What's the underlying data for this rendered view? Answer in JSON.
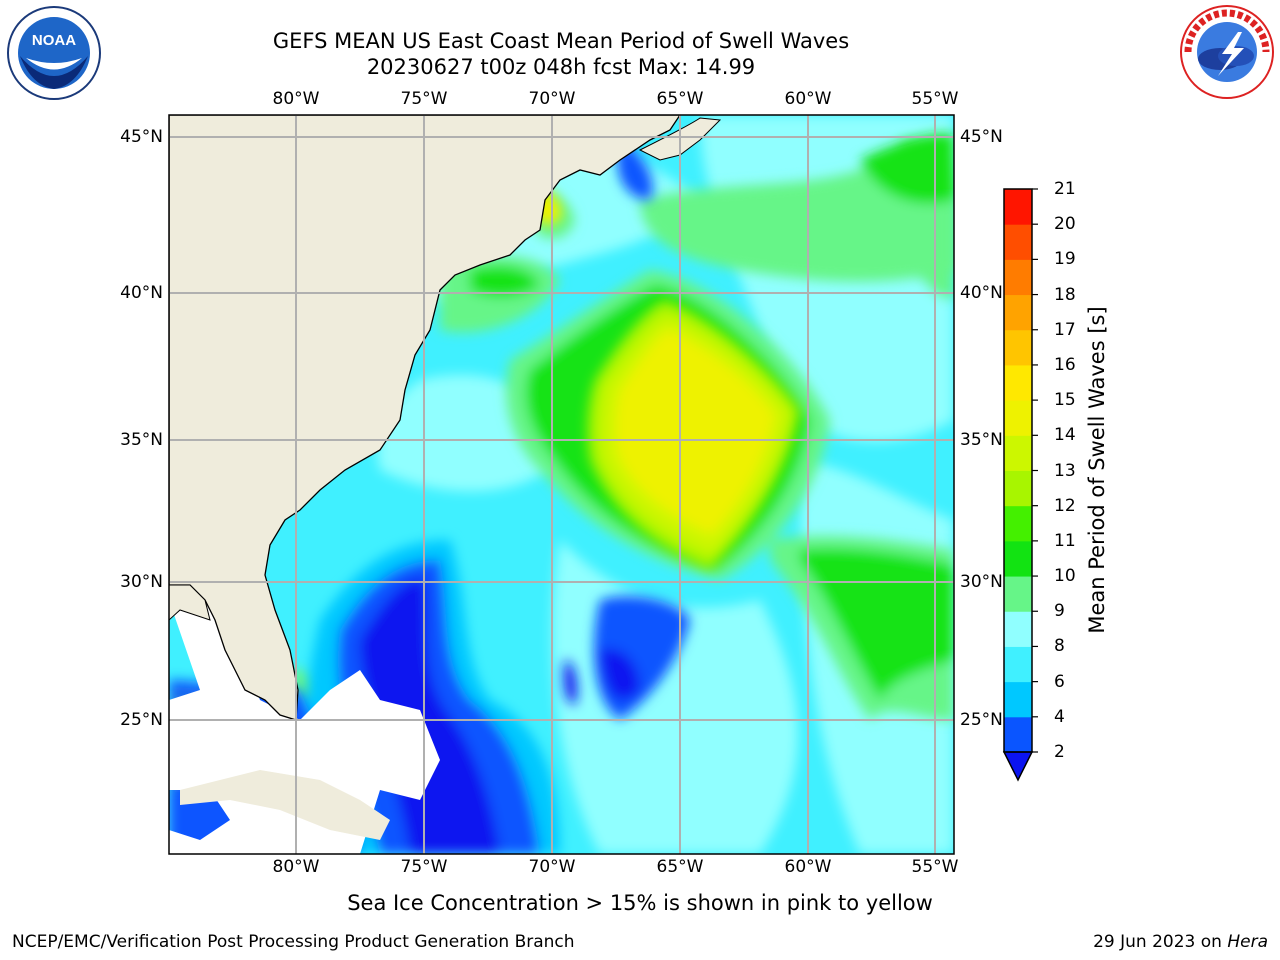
{
  "title": {
    "line1": "GEFS MEAN US East Coast Mean Period of Swell Waves",
    "line2": "20230627 t00z 048h fcst   Max: 14.99"
  },
  "map": {
    "lon_labels": [
      "80°W",
      "75°W",
      "70°W",
      "65°W",
      "60°W",
      "55°W"
    ],
    "lat_labels": [
      "45°N",
      "40°N",
      "35°N",
      "30°N",
      "25°N"
    ],
    "land_color": "#efecdc",
    "gridline_color": "#b0b0b0",
    "max_value": 14.99
  },
  "colorbar": {
    "label": "Mean Period of Swell Waves [s]",
    "ticks": [
      "2",
      "4",
      "6",
      "8",
      "9",
      "10",
      "11",
      "12",
      "13",
      "14",
      "15",
      "16",
      "17",
      "18",
      "19",
      "20",
      "21"
    ],
    "colors": [
      "#0a55ff",
      "#00c8ff",
      "#40f0ff",
      "#90ffff",
      "#66f588",
      "#12e312",
      "#44f000",
      "#a8f500",
      "#ccf700",
      "#eef200",
      "#ffe800",
      "#ffc500",
      "#ffa300",
      "#ff7c00",
      "#ff4e00",
      "#ff1500"
    ],
    "under_color": "#0b14f0"
  },
  "note": "Sea Ice Concentration > 15% is shown in pink to yellow",
  "footer": {
    "left": "NCEP/EMC/Verification Post Processing Product Generation Branch",
    "right_date": "29 Jun 2023 on ",
    "right_host": "Hera"
  },
  "logos": {
    "noaa_text": "NOAA",
    "nws_text": "NATIONAL WEATHER SERVICE"
  }
}
